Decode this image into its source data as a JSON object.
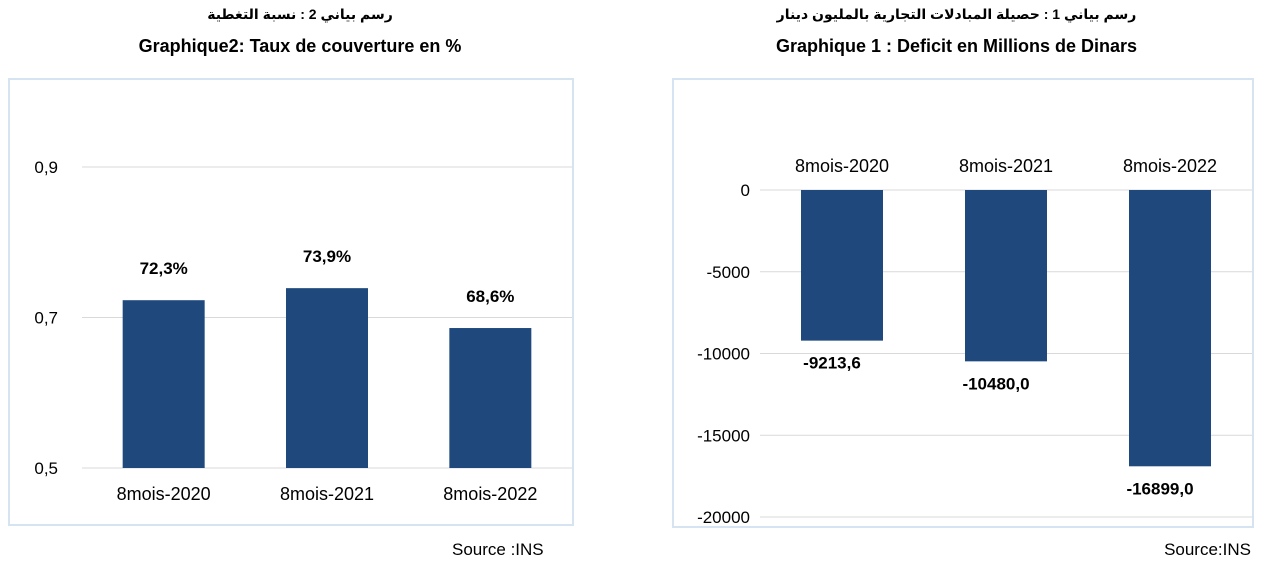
{
  "chart_data": [
    {
      "type": "bar",
      "title_ar": "رسم بياني 2 : نسبة التغطية",
      "title": "Graphique2: Taux de couverture en %",
      "categories": [
        "8mois-2020",
        "8mois-2021",
        "8mois-2022"
      ],
      "values": [
        0.723,
        0.739,
        0.686
      ],
      "data_labels": [
        "72,3%",
        "73,9%",
        "68,6%"
      ],
      "ylim": [
        0.5,
        0.9
      ],
      "yticks": [
        0.5,
        0.7,
        0.9
      ],
      "ytick_labels": [
        "0,5",
        "0,7",
        "0,9"
      ],
      "grid": true,
      "bar_color": "#1f497d",
      "source": "Source :INS"
    },
    {
      "type": "bar",
      "title_ar": "رسم بياني 1 : حصيلة المبادلات التجارية بالمليون دينار",
      "title": "Graphique 1 : Deficit en Millions de Dinars",
      "categories": [
        "8mois-2020",
        "8mois-2021",
        "8mois-2022"
      ],
      "values": [
        -9213.6,
        -10480.0,
        -16899.0
      ],
      "data_labels": [
        "-9213,6",
        "-10480,0",
        "-16899,0"
      ],
      "ylim": [
        -20000,
        0
      ],
      "yticks": [
        0,
        -5000,
        -10000,
        -15000,
        -20000
      ],
      "ytick_labels": [
        "0",
        "-5000",
        "-10000",
        "-15000",
        "-20000"
      ],
      "grid": true,
      "bar_color": "#1f497d",
      "source": "Source:INS"
    }
  ]
}
